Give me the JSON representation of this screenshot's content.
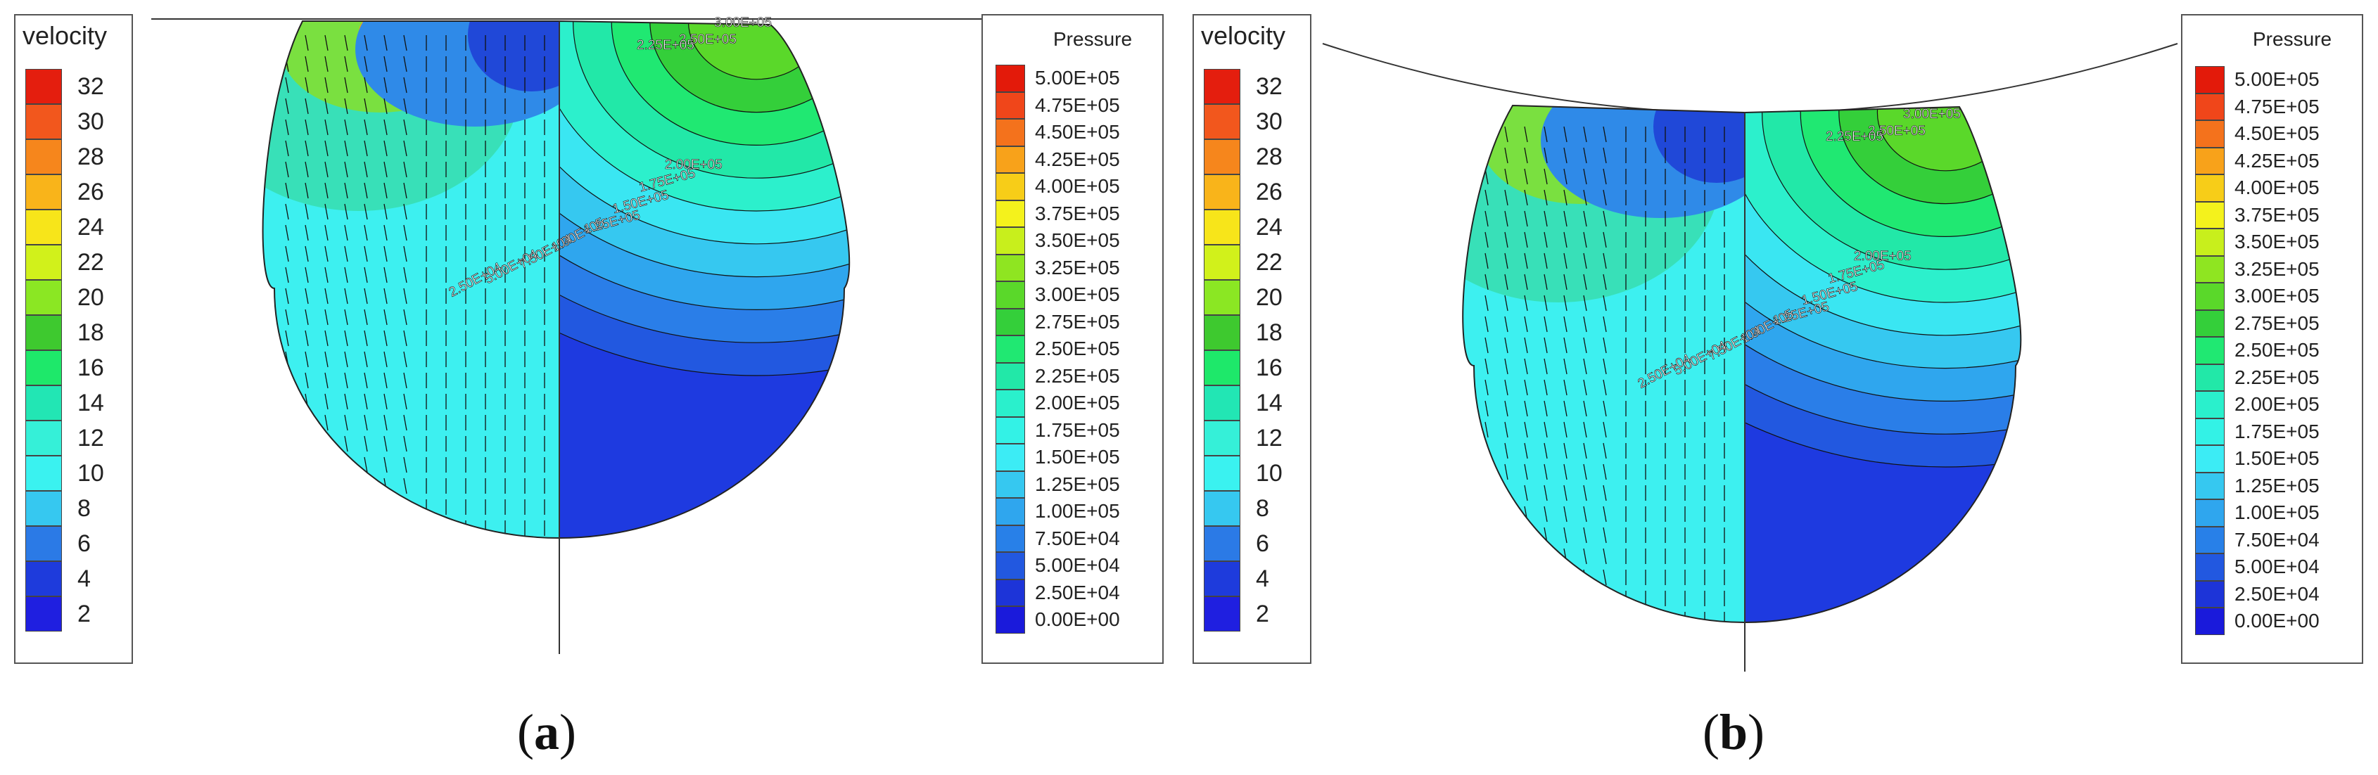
{
  "panels": [
    {
      "id": "a",
      "caption_open": "(",
      "caption_letter": "a",
      "caption_close": ")",
      "velocity_legend": {
        "title": "velocity",
        "labels": [
          "32",
          "30",
          "28",
          "26",
          "24",
          "22",
          "20",
          "18",
          "16",
          "14",
          "12",
          "10",
          "8",
          "6",
          "4",
          "2"
        ],
        "colors": [
          "#e41e0e",
          "#f2571d",
          "#f6861c",
          "#f9b41a",
          "#f7e51a",
          "#d1f11b",
          "#8be723",
          "#3ec92f",
          "#1ee86a",
          "#22e6b4",
          "#35f0d8",
          "#3af2f0",
          "#36c8f0",
          "#2b7ae6",
          "#1e3bdc",
          "#1f1fe0"
        ]
      },
      "pressure_legend": {
        "title": "Pressure",
        "labels": [
          "5.00E+05",
          "4.75E+05",
          "4.50E+05",
          "4.25E+05",
          "4.00E+05",
          "3.75E+05",
          "3.50E+05",
          "3.25E+05",
          "3.00E+05",
          "2.75E+05",
          "2.50E+05",
          "2.25E+05",
          "2.00E+05",
          "1.75E+05",
          "1.50E+05",
          "1.25E+05",
          "1.00E+05",
          "7.50E+04",
          "5.00E+04",
          "2.50E+04",
          "0.00E+00"
        ],
        "colors": [
          "#e31a0a",
          "#f0461a",
          "#f4721c",
          "#f8a21a",
          "#f7cd18",
          "#f4f21c",
          "#c8ef1c",
          "#8fe521",
          "#5ad82a",
          "#34cf3a",
          "#20e872",
          "#22e8a8",
          "#2af0cc",
          "#33f2e6",
          "#3cecf5",
          "#36c8f0",
          "#2fa6ee",
          "#2880e8",
          "#2258e0",
          "#1d34d8",
          "#1a1adb"
        ]
      },
      "contour_labels": [
        "3.00E+05",
        "2.50E+05",
        "2.25E+05",
        "2.00E+05",
        "1.75E+05",
        "1.50E+05",
        "1.25E+05",
        "1.00E+05",
        "7.50E+04",
        "5.00E+04",
        "2.50E+04"
      ]
    },
    {
      "id": "b",
      "caption_open": "(",
      "caption_letter": "b",
      "caption_close": ")",
      "velocity_legend": {
        "title": "velocity",
        "labels": [
          "32",
          "30",
          "28",
          "26",
          "24",
          "22",
          "20",
          "18",
          "16",
          "14",
          "12",
          "10",
          "8",
          "6",
          "4",
          "2"
        ],
        "colors": [
          "#e41e0e",
          "#f2571d",
          "#f6861c",
          "#f9b41a",
          "#f7e51a",
          "#d1f11b",
          "#8be723",
          "#3ec92f",
          "#1ee86a",
          "#22e6b4",
          "#35f0d8",
          "#3af2f0",
          "#36c8f0",
          "#2b7ae6",
          "#1e3bdc",
          "#1f1fe0"
        ]
      },
      "pressure_legend": {
        "title": "Pressure",
        "labels": [
          "5.00E+05",
          "4.75E+05",
          "4.50E+05",
          "4.25E+05",
          "4.00E+05",
          "3.75E+05",
          "3.50E+05",
          "3.25E+05",
          "3.00E+05",
          "2.75E+05",
          "2.50E+05",
          "2.25E+05",
          "2.00E+05",
          "1.75E+05",
          "1.50E+05",
          "1.25E+05",
          "1.00E+05",
          "7.50E+04",
          "5.00E+04",
          "2.50E+04",
          "0.00E+00"
        ],
        "colors": [
          "#e31a0a",
          "#f0461a",
          "#f4721c",
          "#f8a21a",
          "#f7cd18",
          "#f4f21c",
          "#c8ef1c",
          "#8fe521",
          "#5ad82a",
          "#34cf3a",
          "#20e872",
          "#22e8a8",
          "#2af0cc",
          "#33f2e6",
          "#3cecf5",
          "#36c8f0",
          "#2fa6ee",
          "#2880e8",
          "#2258e0",
          "#1d34d8",
          "#1a1adb"
        ]
      },
      "contour_labels": [
        "3.00E+05",
        "2.50E+05",
        "2.25E+05",
        "2.00E+05",
        "1.75E+05",
        "1.50E+05",
        "1.25E+05",
        "1.00E+05",
        "7.50E+04",
        "5.00E+04",
        "2.50E+04"
      ]
    }
  ]
}
